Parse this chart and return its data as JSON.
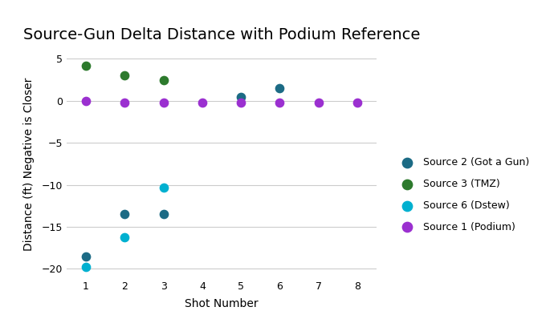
{
  "title": "Source-Gun Delta Distance with Podium Reference",
  "xlabel": "Shot Number",
  "ylabel": "Distance (ft) Negative is Closer",
  "xlim": [
    0.5,
    8.5
  ],
  "ylim": [
    -21,
    6
  ],
  "yticks": [
    -20,
    -15,
    -10,
    -5,
    0,
    5
  ],
  "xticks": [
    1,
    2,
    3,
    4,
    5,
    6,
    7,
    8
  ],
  "series": [
    {
      "label": "Source 2 (Got a Gun)",
      "color": "#1c6b85",
      "x": [
        1,
        2,
        3,
        5,
        6
      ],
      "y": [
        -18.5,
        -13.5,
        -13.5,
        0.5,
        1.5
      ]
    },
    {
      "label": "Source 3 (TMZ)",
      "color": "#2d7a2d",
      "x": [
        1,
        2,
        3
      ],
      "y": [
        4.2,
        3.0,
        2.5
      ]
    },
    {
      "label": "Source 6 (Dstew)",
      "color": "#00b0d0",
      "x": [
        1,
        2,
        3
      ],
      "y": [
        -19.8,
        -16.2,
        -10.3
      ]
    },
    {
      "label": "Source 1 (Podium)",
      "color": "#9b30d0",
      "x": [
        1,
        2,
        3,
        4,
        5,
        6,
        7,
        8
      ],
      "y": [
        0,
        -0.2,
        -0.2,
        -0.2,
        -0.2,
        -0.2,
        -0.2,
        -0.2
      ]
    }
  ],
  "background_color": "#ffffff",
  "grid_color": "#cccccc",
  "title_fontsize": 14,
  "label_fontsize": 10,
  "tick_fontsize": 9,
  "legend_fontsize": 9,
  "marker_size": 55
}
